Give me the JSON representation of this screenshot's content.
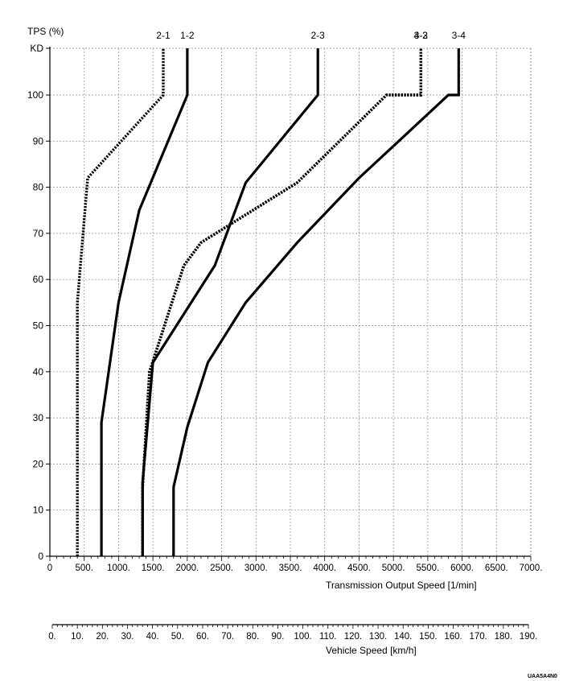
{
  "chart_data": {
    "type": "line",
    "ylabel": "TPS (%)",
    "y_top_label": "KD",
    "ylim": [
      0,
      110
    ],
    "y_ticks": [
      0,
      10,
      20,
      30,
      40,
      50,
      60,
      70,
      80,
      90,
      100
    ],
    "y_tick_labels": [
      "0",
      "10",
      "20",
      "30",
      "40",
      "50",
      "60",
      "70",
      "80",
      "90",
      "100"
    ],
    "xlabel": "Transmission Output Speed [1/min]",
    "xlim": [
      0,
      7000
    ],
    "x_tick_labels": [
      "0",
      "500.",
      "1000.",
      "1500.",
      "2000.",
      "2500.",
      "3000.",
      "3500.",
      "4000.",
      "4500.",
      "5000.",
      "5500.",
      "6000.",
      "6500.",
      "7000."
    ],
    "x2label": "Vehicle Speed [km/h]",
    "x2lim": [
      0,
      190
    ],
    "x2_tick_labels": [
      "0.",
      "10.",
      "20.",
      "30.",
      "40.",
      "50.",
      "60.",
      "70.",
      "80.",
      "90.",
      "100.",
      "110.",
      "120.",
      "130.",
      "140.",
      "150.",
      "160.",
      "170.",
      "180.",
      "190."
    ],
    "grid": true,
    "series": [
      {
        "name": "2-1",
        "style": "dotted",
        "points": [
          [
            400,
            0
          ],
          [
            400,
            55
          ],
          [
            550,
            82
          ],
          [
            1650,
            100
          ],
          [
            1650,
            110
          ]
        ]
      },
      {
        "name": "1-2",
        "style": "solid",
        "points": [
          [
            750,
            0
          ],
          [
            750,
            29
          ],
          [
            1000,
            55
          ],
          [
            1300,
            75
          ],
          [
            2000,
            100
          ],
          [
            2000,
            110
          ]
        ]
      },
      {
        "name": "3-2",
        "style": "dotted",
        "points": [
          [
            1350,
            0
          ],
          [
            1350,
            15
          ],
          [
            1450,
            40
          ],
          [
            1950,
            63
          ],
          [
            2200,
            68
          ],
          [
            3600,
            81
          ],
          [
            4900,
            100
          ],
          [
            5400,
            100
          ],
          [
            5400,
            110
          ]
        ]
      },
      {
        "name": "2-3",
        "style": "solid",
        "points": [
          [
            1350,
            0
          ],
          [
            1350,
            16
          ],
          [
            1500,
            42
          ],
          [
            2400,
            63
          ],
          [
            2850,
            81
          ],
          [
            3900,
            100
          ],
          [
            3900,
            110
          ]
        ]
      },
      {
        "name": "4-3",
        "style": "dotted",
        "points": [
          [
            1350,
            0
          ],
          [
            1350,
            15
          ],
          [
            1450,
            40
          ],
          [
            1950,
            63
          ],
          [
            2200,
            68
          ],
          [
            3600,
            81
          ],
          [
            4900,
            100
          ],
          [
            5400,
            100
          ],
          [
            5400,
            110
          ]
        ]
      },
      {
        "name": "3-4",
        "style": "solid",
        "points": [
          [
            1800,
            0
          ],
          [
            1800,
            15
          ],
          [
            2000,
            28
          ],
          [
            2300,
            42
          ],
          [
            2850,
            55
          ],
          [
            3600,
            68
          ],
          [
            4500,
            82
          ],
          [
            5800,
            100
          ],
          [
            5950,
            100
          ],
          [
            5950,
            110
          ]
        ]
      }
    ],
    "series_override_notes": ""
  },
  "figure_code": "UAA5A4N0"
}
